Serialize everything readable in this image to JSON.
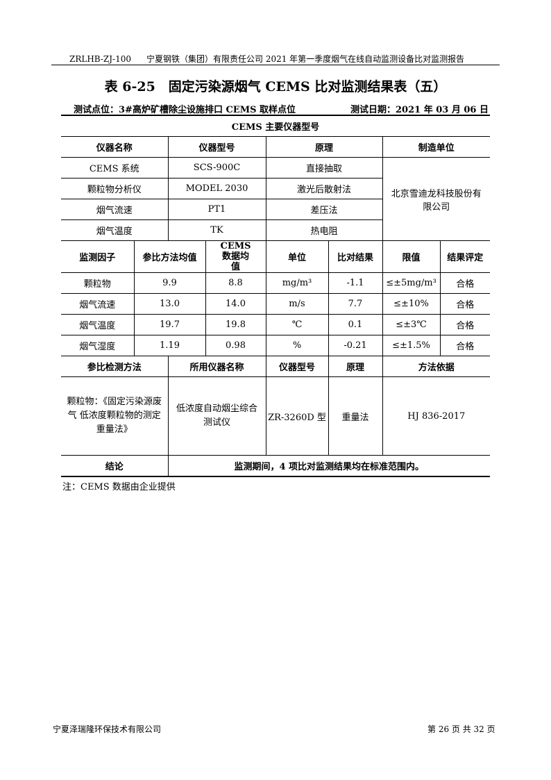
{
  "header": {
    "code": "ZRLHB-ZJ-100",
    "report": "宁夏钢铁（集团）有限责任公司 2021 年第一季度烟气在线自动监测设备比对监测报告"
  },
  "title": "表 6-25　固定污染源烟气 CEMS 比对监测结果表（五）",
  "location": "测试点位：3#高炉矿槽除尘设施排口 CEMS 取样点位",
  "date": "测试日期：2021 年 03 月 06 日",
  "instruments": {
    "caption": "CEMS 主要仪器型号",
    "headers": [
      "仪器名称",
      "仪器型号",
      "原理",
      "制造单位"
    ],
    "rows": [
      [
        "CEMS 系统",
        "SCS-900C",
        "直接抽取"
      ],
      [
        "颗粒物分析仪",
        "MODEL 2030",
        "激光后散射法"
      ],
      [
        "烟气流速",
        "PT1",
        "差压法"
      ],
      [
        "烟气温度",
        "TK",
        "热电阻"
      ]
    ],
    "manufacturer": "北京雪迪龙科技股份有限公司"
  },
  "results": {
    "headers": [
      "监测因子",
      "参比方法均值",
      "CEMS 数据均值",
      "单位",
      "比对结果",
      "限值",
      "结果评定"
    ],
    "rows": [
      [
        "颗粒物",
        "9.9",
        "8.8",
        "mg/m³",
        "-1.1",
        "≤±5mg/m³",
        "合格"
      ],
      [
        "烟气流速",
        "13.0",
        "14.0",
        "m/s",
        "7.7",
        "≤±10%",
        "合格"
      ],
      [
        "烟气温度",
        "19.7",
        "19.8",
        "℃",
        "0.1",
        "≤±3℃",
        "合格"
      ],
      [
        "烟气湿度",
        "1.19",
        "0.98",
        "%",
        "-0.21",
        "≤±1.5%",
        "合格"
      ]
    ]
  },
  "method": {
    "headers": [
      "参比检测方法",
      "所用仪器名称",
      "仪器型号",
      "原理",
      "方法依据"
    ],
    "row": [
      "颗粒物：《固定污染源废气 低浓度颗粒物的测定 重量法》",
      "低浓度自动烟尘综合测试仪",
      "ZR-3260D 型",
      "重量法",
      "HJ 836-2017"
    ]
  },
  "conclusion": {
    "label": "结论",
    "text": "监测期间，4 项比对监测结果均在标准范围内。"
  },
  "note": "注：CEMS 数据由企业提供",
  "footer": {
    "company": "宁夏泽瑞隆环保技术有限公司",
    "page": "第 26 页 共 32 页"
  }
}
